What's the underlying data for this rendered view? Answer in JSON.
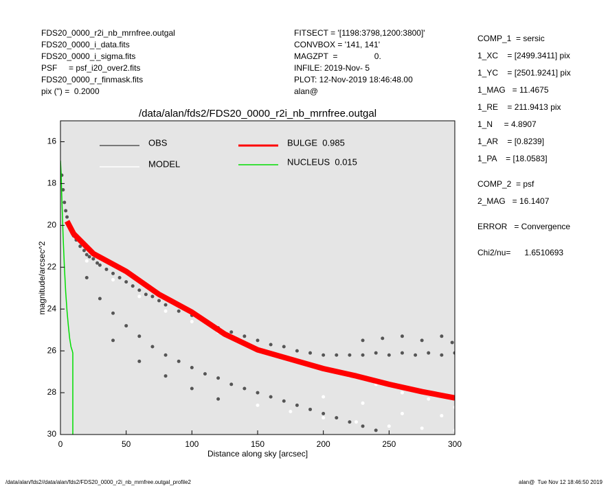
{
  "header": {
    "left": [
      "FDS20_0000_r2i_nb_mrnfree.outgal",
      "FDS20_0000_i_data.fits",
      "FDS20_0000_i_sigma.fits",
      "PSF     = psf_i20_over2.fits",
      "FDS20_0000_r_finmask.fits",
      "pix (\") =  0.2000"
    ],
    "middle": [
      "FITSECT = '[1198:3798,1200:3800]'",
      "CONVBOX = '141, 141'",
      "MAGZPT  =                0.",
      "INFILE: 2019-Nov- 5",
      "PLOT: 12-Nov-2019 18:46:48.00",
      "alan@"
    ],
    "right": [
      "COMP_1  = sersic",
      "1_XC    = [2499.3411] pix",
      "1_YC    = [2501.9241] pix",
      "1_MAG   = 11.4675",
      "1_RE    = 211.9413 pix",
      "1_N     = 4.8907",
      "1_AR    = [0.8239]",
      "1_PA    = [18.0583]",
      "COMP_2  = psf",
      "2_MAG   = 16.1407",
      "ERROR   = Convergence",
      "Chi2/nu=      1.6510693"
    ]
  },
  "footer": {
    "left": "/data/alan/fds2//data/alan/fds2/FDS20_0000_r2i_nb_mrnfree.outgal_profile2",
    "right": "alan@  Tue Nov 12 18:46:50 2019"
  },
  "chart_data": {
    "type": "scatter",
    "title": "/data/alan/fds2/FDS20_0000_r2i_nb_mrnfree.outgal",
    "x_label": "Distance along sky [arcsec]",
    "y_label": "magnitude/arcsec^2",
    "xlim": [
      0,
      300
    ],
    "xticks": [
      0,
      50,
      100,
      150,
      200,
      250,
      300
    ],
    "ylim": [
      30,
      15
    ],
    "yticks": [
      16,
      18,
      20,
      22,
      24,
      26,
      28,
      30
    ],
    "background": "#e5e5e5",
    "series": [
      {
        "name": "OBS",
        "kind": "points",
        "color": "#555555",
        "x": [
          1,
          2,
          3,
          4,
          5,
          6,
          8,
          10,
          12,
          15,
          18,
          20,
          22,
          25,
          28,
          30,
          35,
          40,
          45,
          50,
          55,
          60,
          65,
          70,
          75,
          80,
          90,
          100,
          110,
          120,
          130,
          140,
          150,
          160,
          170,
          180,
          190,
          200,
          210,
          220,
          230,
          240,
          250,
          260,
          270,
          280,
          290,
          300,
          20,
          30,
          40,
          50,
          60,
          70,
          80,
          90,
          100,
          110,
          120,
          130,
          140,
          150,
          160,
          170,
          180,
          190,
          200,
          210,
          220,
          230,
          240,
          230,
          245,
          260,
          275,
          290,
          298,
          40,
          60,
          80,
          100,
          120
        ],
        "values": [
          17.6,
          18.3,
          18.9,
          19.3,
          19.6,
          19.9,
          20.2,
          20.5,
          20.7,
          21,
          21.2,
          21.4,
          21.5,
          21.6,
          21.8,
          21.9,
          22.1,
          22.3,
          22.5,
          22.7,
          22.9,
          23.1,
          23.3,
          23.4,
          23.6,
          23.8,
          24.1,
          24.3,
          24.6,
          24.9,
          25.1,
          25.3,
          25.5,
          25.7,
          25.8,
          26,
          26.1,
          26.2,
          26.2,
          26.2,
          26.2,
          26.1,
          26.2,
          26.1,
          26.2,
          26.1,
          26.2,
          26.1,
          22.5,
          23.5,
          24.2,
          24.8,
          25.3,
          25.8,
          26.2,
          26.5,
          26.8,
          27.1,
          27.3,
          27.6,
          27.8,
          28,
          28.2,
          28.4,
          28.6,
          28.8,
          29,
          29.2,
          29.4,
          29.6,
          29.8,
          25.5,
          25.4,
          25.3,
          25.5,
          25.3,
          25.6,
          25.5,
          26.5,
          27.2,
          27.8,
          28.3
        ]
      },
      {
        "name": "MODEL",
        "kind": "points",
        "color": "#ffffff",
        "x": [
          20,
          40,
          60,
          80,
          100,
          120,
          140,
          160,
          180,
          200,
          220,
          240,
          260,
          280,
          300,
          150,
          175,
          200,
          225,
          250,
          275,
          300,
          200,
          230,
          260,
          290
        ],
        "values": [
          21.7,
          22.6,
          23.4,
          24.1,
          24.6,
          25.1,
          25.6,
          26.1,
          26.5,
          26.9,
          27.2,
          27.6,
          28,
          28.3,
          28.7,
          28.6,
          28.9,
          29.2,
          29.4,
          29.6,
          29.7,
          29.8,
          28.2,
          28.5,
          29,
          29.1
        ]
      },
      {
        "name": "BULGE  0.985",
        "kind": "line",
        "color": "#ff0000",
        "x": [
          5,
          10,
          25,
          50,
          75,
          100,
          125,
          150,
          175,
          200,
          225,
          250,
          275,
          300
        ],
        "values": [
          19.8,
          20.4,
          21.35,
          22.2,
          23.3,
          24.15,
          25.2,
          25.95,
          26.4,
          26.85,
          27.2,
          27.6,
          27.95,
          28.25
        ]
      },
      {
        "name": "NUCLEUS  0.015",
        "kind": "line",
        "color": "#00dd00",
        "x": [
          0,
          0.5,
          1,
          2,
          3,
          4,
          5,
          6,
          7,
          8,
          9,
          9.4,
          9.4
        ],
        "values": [
          16.9,
          17.5,
          18.6,
          20.5,
          22,
          23.2,
          24.1,
          24.8,
          25.4,
          25.8,
          26,
          26.1,
          30
        ]
      }
    ]
  }
}
